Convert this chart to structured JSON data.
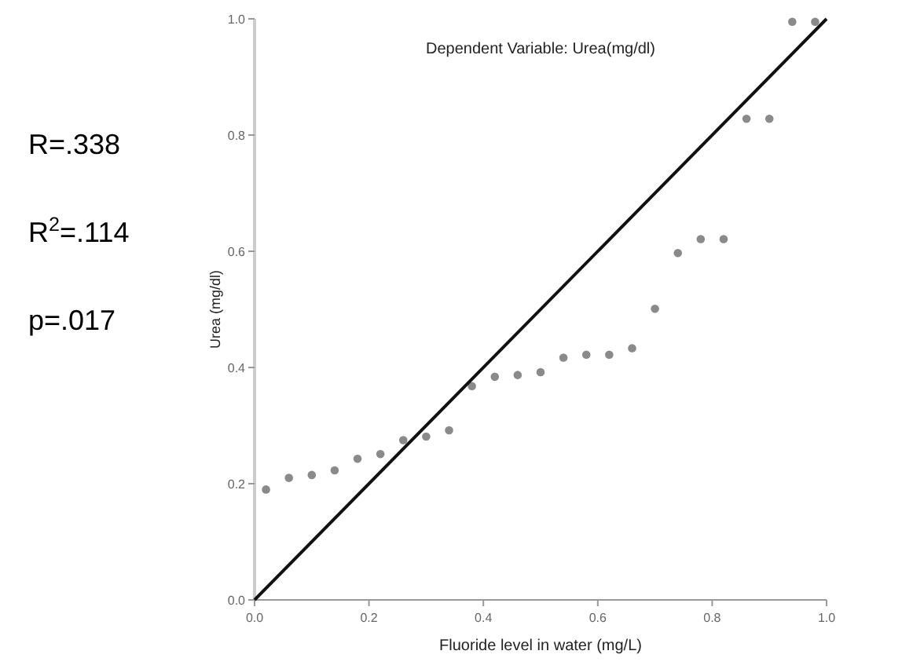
{
  "chart_data": {
    "type": "scatter",
    "title": "Dependent Variable: Urea(mg/dl)",
    "xlabel": "Fluoride level in water (mg/L)",
    "ylabel": "Urea (mg/dl)",
    "annotations": [
      "R=.338",
      "R$^{2}$=.114",
      "p=.017"
    ],
    "xlim": [
      0,
      1
    ],
    "ylim": [
      0,
      1
    ],
    "xticks": [
      {
        "value": 0,
        "label": "0.0"
      },
      {
        "value": 0.2,
        "label": "0.2"
      },
      {
        "value": 0.4,
        "label": "0.4"
      },
      {
        "value": 0.6,
        "label": "0.6"
      },
      {
        "value": 0.8,
        "label": "0.8"
      },
      {
        "value": 1,
        "label": "1.0"
      }
    ],
    "yticks": [
      {
        "value": 0,
        "label": "0.0"
      },
      {
        "value": 0.2,
        "label": "0.2"
      },
      {
        "value": 0.4,
        "label": "0.4"
      },
      {
        "value": 0.6,
        "label": "0.6"
      },
      {
        "value": 0.8,
        "label": "0.8"
      },
      {
        "value": 1,
        "label": "1.0"
      }
    ],
    "grid": false,
    "marker": "circle",
    "series": [
      {
        "color": "#8a8a8a",
        "x": [
          0.02,
          0.06,
          0.1,
          0.14,
          0.18,
          0.22,
          0.26,
          0.3,
          0.34,
          0.38,
          0.42,
          0.46,
          0.5,
          0.54,
          0.58,
          0.62,
          0.66,
          0.7,
          0.74,
          0.78,
          0.82,
          0.86,
          0.9,
          0.94,
          0.98
        ],
        "values": [
          0.19,
          0.21,
          0.215,
          0.223,
          0.243,
          0.251,
          0.275,
          0.281,
          0.292,
          0.368,
          0.384,
          0.387,
          0.392,
          0.417,
          0.422,
          0.422,
          0.433,
          0.501,
          0.597,
          0.621,
          0.621,
          0.828,
          0.828,
          0.995,
          0.995
        ]
      },
      {
        "type": "line",
        "color": "#111111",
        "x": [
          0,
          1
        ],
        "values": [
          0,
          1
        ],
        "marker": "none",
        "line_style": "solid"
      }
    ]
  }
}
